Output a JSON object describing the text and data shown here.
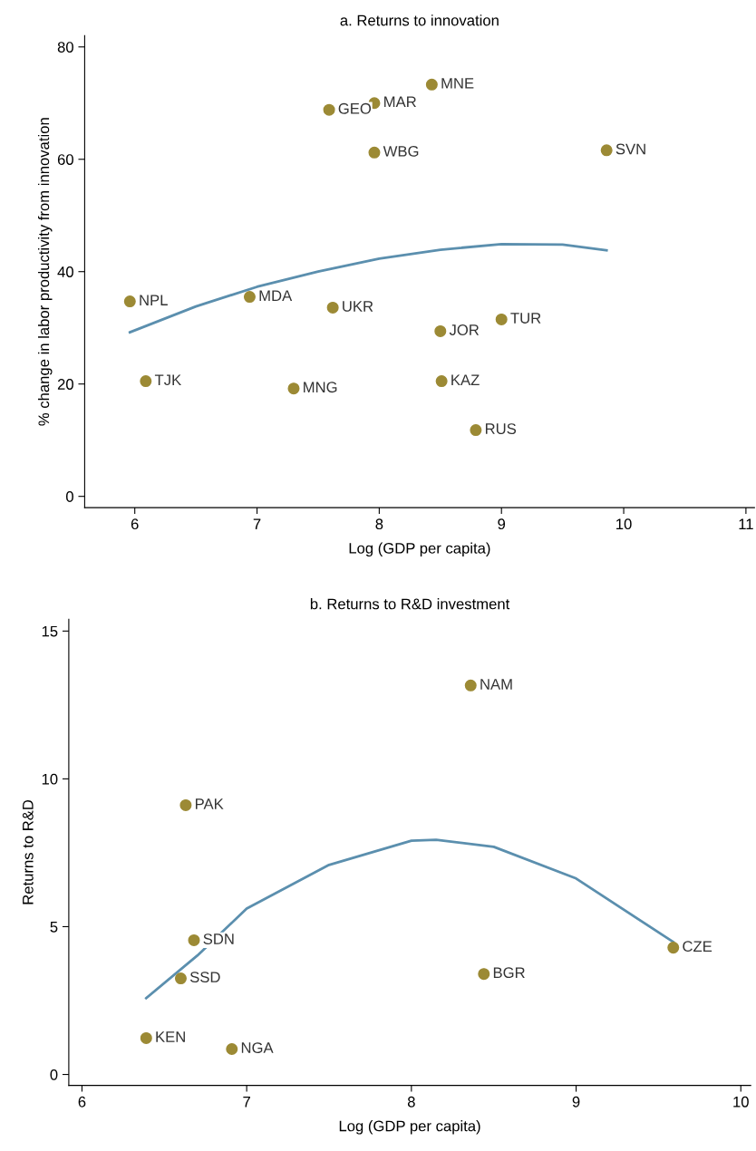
{
  "chart_data": [
    {
      "type": "scatter",
      "title": "a. Returns to innovation",
      "xlabel": "Log (GDP per capita)",
      "ylabel": "% change in labor productivity from innovation",
      "xlim": [
        5.59,
        11.07
      ],
      "ylim": [
        -2,
        82
      ],
      "xticks": [
        6,
        7,
        8,
        9,
        10,
        11
      ],
      "yticks": [
        0,
        20,
        40,
        60,
        80
      ],
      "grid": false,
      "legend": false,
      "series": [
        {
          "type": "scatter",
          "marker": "circle",
          "color": "#9c8a35",
          "x": [
            5.96,
            6.09,
            6.94,
            7.3,
            7.62,
            7.59,
            7.96,
            7.96,
            8.43,
            8.5,
            8.51,
            8.79,
            9.0,
            9.86
          ],
          "values": [
            34.7,
            20.5,
            35.5,
            19.2,
            33.6,
            68.8,
            70.0,
            61.2,
            73.3,
            29.4,
            20.5,
            11.8,
            31.5,
            61.6
          ]
        },
        {
          "type": "line",
          "color": "#5b8fae",
          "x": [
            5.96,
            6.5,
            7,
            7.5,
            8,
            8.5,
            9,
            9.5,
            9.86
          ],
          "values": [
            29.2,
            33.8,
            37.3,
            40.0,
            42.3,
            43.9,
            44.9,
            44.8,
            43.8
          ]
        }
      ],
      "annotations": [
        {
          "text": "NPL",
          "x": 5.96,
          "y": 34.7
        },
        {
          "text": "TJK",
          "x": 6.09,
          "y": 20.5
        },
        {
          "text": "MDA",
          "x": 6.94,
          "y": 35.5
        },
        {
          "text": "MNG",
          "x": 7.3,
          "y": 19.2
        },
        {
          "text": "UKR",
          "x": 7.62,
          "y": 33.6
        },
        {
          "text": "GEO",
          "x": 7.59,
          "y": 68.8
        },
        {
          "text": "MAR",
          "x": 7.96,
          "y": 70.0
        },
        {
          "text": "WBG",
          "x": 7.96,
          "y": 61.2
        },
        {
          "text": "MNE",
          "x": 8.43,
          "y": 73.3
        },
        {
          "text": "JOR",
          "x": 8.5,
          "y": 29.4
        },
        {
          "text": "KAZ",
          "x": 8.51,
          "y": 20.5
        },
        {
          "text": "RUS",
          "x": 8.79,
          "y": 11.8
        },
        {
          "text": "TUR",
          "x": 9.0,
          "y": 31.5
        },
        {
          "text": "SVN",
          "x": 9.86,
          "y": 61.6
        }
      ]
    },
    {
      "type": "scatter",
      "title": "b. Returns to R&D investment",
      "xlabel": "Log (GDP per capita)",
      "ylabel": "Returns to R&D",
      "xlim": [
        5.92,
        10.06
      ],
      "ylim": [
        -0.37,
        15.4
      ],
      "xticks": [
        6,
        7,
        8,
        9,
        10
      ],
      "yticks": [
        0,
        5,
        10,
        15
      ],
      "grid": false,
      "legend": false,
      "series": [
        {
          "type": "scatter",
          "marker": "circle",
          "color": "#9c8a35",
          "x": [
            8.36,
            6.63,
            6.68,
            6.6,
            6.39,
            6.91,
            8.44,
            9.59
          ],
          "values": [
            13.16,
            9.11,
            4.54,
            3.25,
            1.23,
            0.86,
            3.4,
            4.29
          ]
        },
        {
          "type": "line",
          "color": "#5b8fae",
          "x": [
            6.39,
            6.7,
            7,
            7.5,
            8,
            8.15,
            8.5,
            9,
            9.59
          ],
          "values": [
            2.58,
            4.02,
            5.61,
            7.09,
            7.91,
            7.94,
            7.7,
            6.63,
            4.48
          ]
        }
      ],
      "annotations": [
        {
          "text": "NAM",
          "x": 8.36,
          "y": 13.16
        },
        {
          "text": "PAK",
          "x": 6.63,
          "y": 9.11
        },
        {
          "text": "SDN",
          "x": 6.68,
          "y": 4.54
        },
        {
          "text": "SSD",
          "x": 6.6,
          "y": 3.25
        },
        {
          "text": "KEN",
          "x": 6.39,
          "y": 1.23
        },
        {
          "text": "NGA",
          "x": 6.91,
          "y": 0.86
        },
        {
          "text": "BGR",
          "x": 8.44,
          "y": 3.4
        },
        {
          "text": "CZE",
          "x": 9.59,
          "y": 4.29
        }
      ]
    }
  ]
}
